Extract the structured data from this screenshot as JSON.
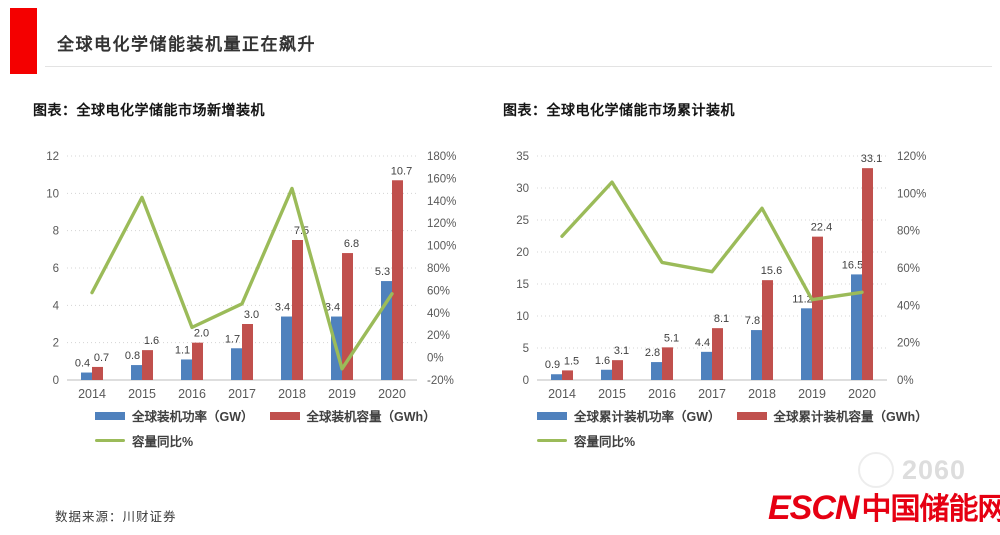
{
  "page": {
    "title": "全球电化学储能装机量正在飙升",
    "source": "数据来源：川财证券",
    "watermark": "2060",
    "logo": {
      "en": "ESCN",
      "cn": "中国储能网"
    },
    "accent_color": "#f40000",
    "logo_color": "#e60012"
  },
  "chart_data": [
    {
      "type": "bar",
      "title": "图表：全球电化学储能市场新增装机",
      "categories": [
        "2014",
        "2015",
        "2016",
        "2017",
        "2018",
        "2019",
        "2020"
      ],
      "series": [
        {
          "name": "全球装机功率（GW）",
          "type": "bar",
          "axis": "left",
          "color": "#4f81bd",
          "values": [
            0.4,
            0.8,
            1.1,
            1.7,
            3.4,
            3.4,
            5.3
          ]
        },
        {
          "name": "全球装机容量（GWh）",
          "type": "bar",
          "axis": "left",
          "color": "#c0504d",
          "values": [
            0.7,
            1.6,
            2.0,
            3.0,
            7.5,
            6.8,
            10.7
          ]
        },
        {
          "name": "容量同比%",
          "type": "line",
          "axis": "right",
          "color": "#9bbb59",
          "values": [
            58,
            143,
            27,
            48,
            151,
            -10,
            57
          ]
        }
      ],
      "left_axis": {
        "min": 0,
        "max": 12,
        "step": 2
      },
      "right_axis": {
        "min": -20,
        "max": 180,
        "step": 20,
        "suffix": "%"
      },
      "grid": true,
      "legend_position": "bottom"
    },
    {
      "type": "bar",
      "title": "图表：全球电化学储能市场累计装机",
      "categories": [
        "2014",
        "2015",
        "2016",
        "2017",
        "2018",
        "2019",
        "2020"
      ],
      "series": [
        {
          "name": "全球累计装机功率（GW）",
          "type": "bar",
          "axis": "left",
          "color": "#4f81bd",
          "values": [
            0.9,
            1.6,
            2.8,
            4.4,
            7.8,
            11.2,
            16.5
          ]
        },
        {
          "name": "全球累计装机容量（GWh）",
          "type": "bar",
          "axis": "left",
          "color": "#c0504d",
          "values": [
            1.5,
            3.1,
            5.1,
            8.1,
            15.6,
            22.4,
            33.1
          ]
        },
        {
          "name": "容量同比%",
          "type": "line",
          "axis": "right",
          "color": "#9bbb59",
          "values": [
            77,
            106,
            63,
            58,
            92,
            43,
            47
          ]
        }
      ],
      "left_axis": {
        "min": 0,
        "max": 35,
        "step": 5
      },
      "right_axis": {
        "min": 0,
        "max": 120,
        "step": 20,
        "suffix": "%"
      },
      "grid": true,
      "legend_position": "bottom"
    }
  ]
}
